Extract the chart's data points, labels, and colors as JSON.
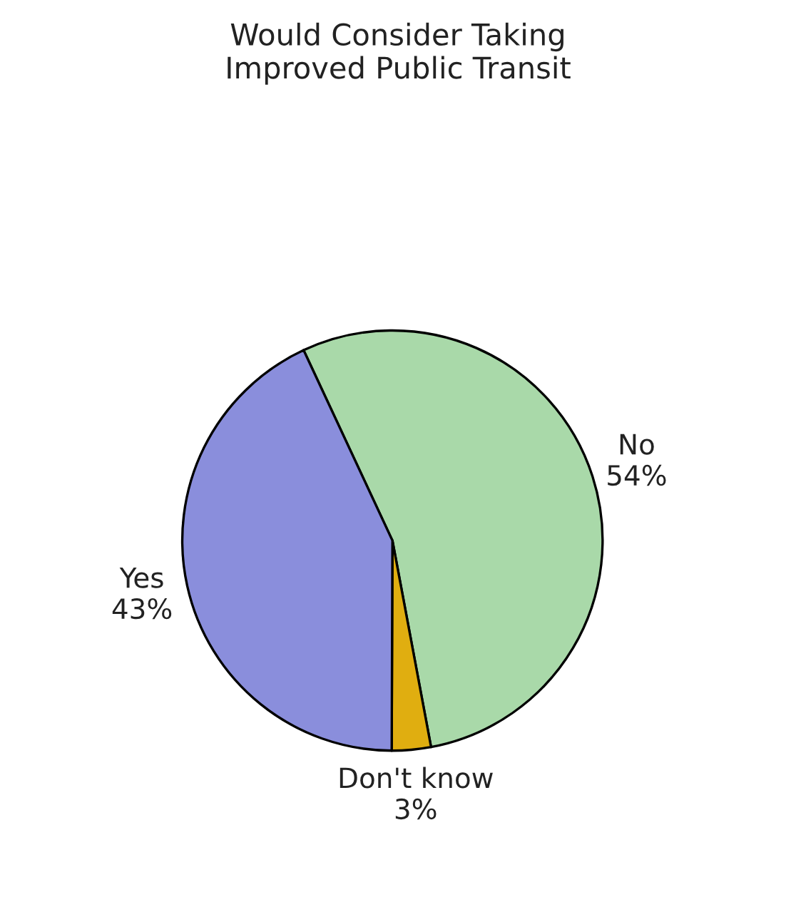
{
  "chart_data": {
    "type": "pie",
    "title": "Would Consider Taking\nImproved Public Transit",
    "categories": [
      "No",
      "Don't know",
      "Yes"
    ],
    "values": [
      54,
      3,
      43
    ],
    "value_labels": [
      "54%",
      "3%",
      "43%"
    ],
    "colors": [
      "#a9d9a9",
      "#e0ae10",
      "#8a8edc"
    ]
  }
}
